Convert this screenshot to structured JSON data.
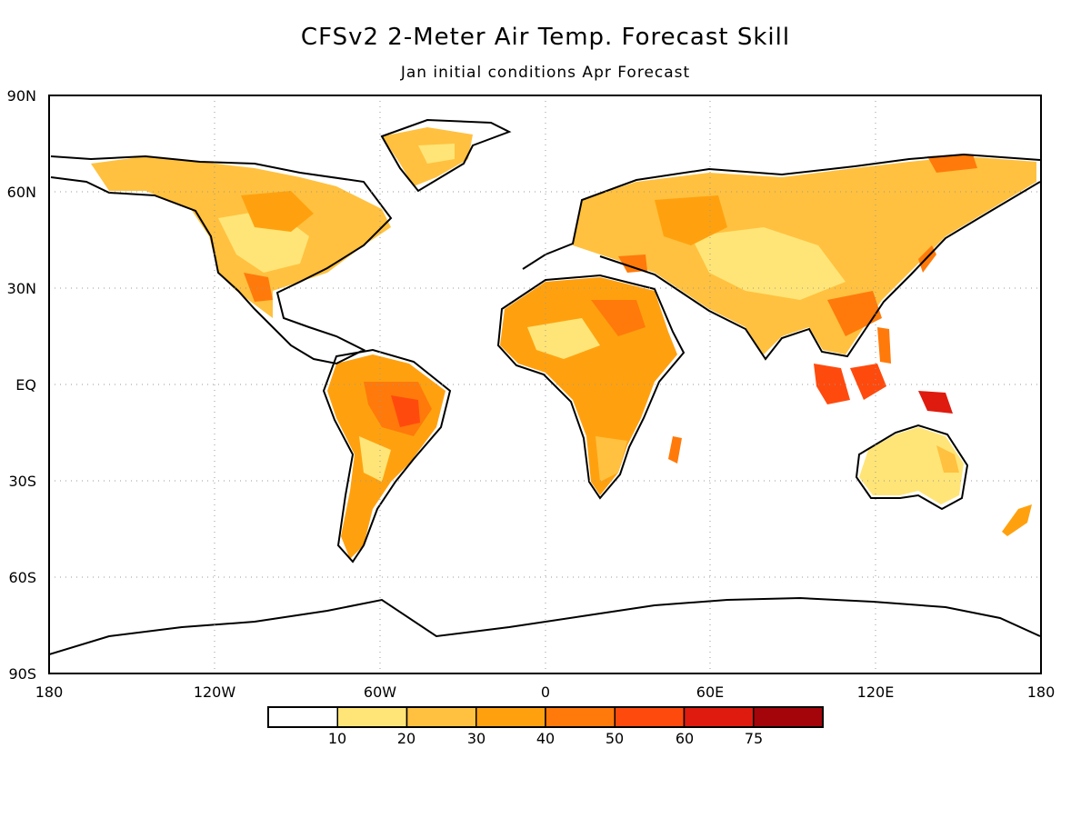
{
  "title": "CFSv2 2-Meter Air Temp. Forecast Skill",
  "subtitle": "Jan initial conditions  Apr Forecast",
  "map": {
    "lat_labels": [
      "90N",
      "60N",
      "30N",
      "EQ",
      "30S",
      "60S",
      "90S"
    ],
    "lon_labels": [
      "180",
      "120W",
      "60W",
      "0",
      "60E",
      "120E",
      "180"
    ],
    "grid": "dotted",
    "projection": "cylindrical-equidistant"
  },
  "colorbar": {
    "labels": [
      "10",
      "20",
      "30",
      "40",
      "50",
      "60",
      "75"
    ],
    "colors": [
      "#ffffff",
      "#ffe577",
      "#ffc13f",
      "#ffa10f",
      "#ff7a0a",
      "#ff4a0e",
      "#df1b0f",
      "#a3050b"
    ]
  }
}
